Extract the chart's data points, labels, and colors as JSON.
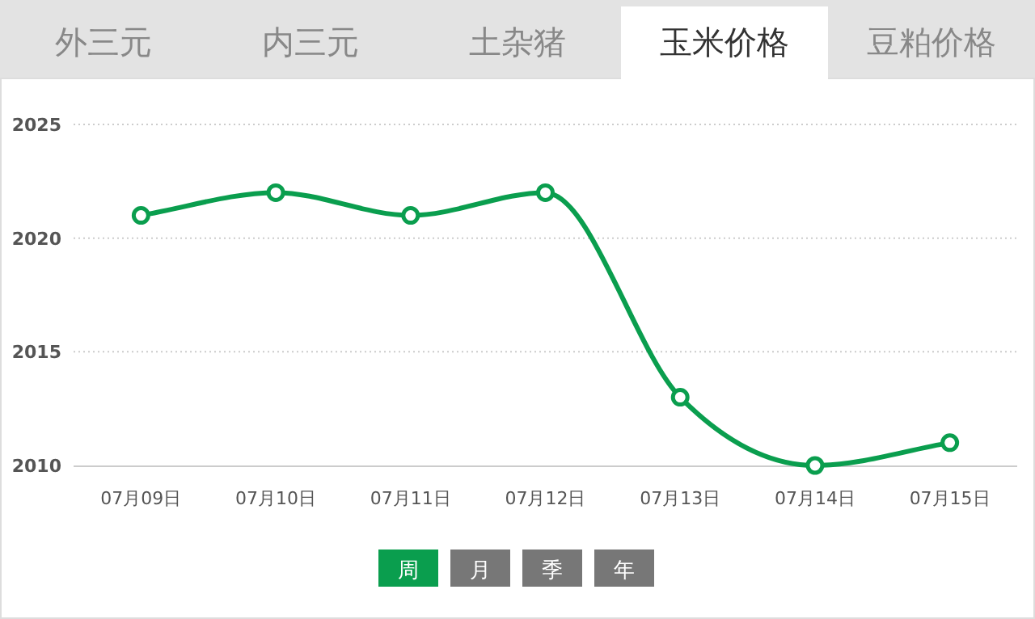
{
  "chart_data": {
    "type": "line",
    "title": "玉米价格",
    "categories": [
      "07月09日",
      "07月10日",
      "07月11日",
      "07月12日",
      "07月13日",
      "07月14日",
      "07月15日"
    ],
    "series": [
      {
        "color": "#0a9e4e",
        "values": [
          2021,
          2022,
          2021,
          2022,
          2013,
          2010,
          2011
        ]
      }
    ],
    "ylim": [
      2010,
      2025
    ],
    "yticks": [
      2010,
      2015,
      2020,
      2025
    ],
    "grid": "y",
    "marker": "circle",
    "line_style": "solid",
    "annotations": [
      "外三元",
      "内三元",
      "土杂猪",
      "豆粕价格",
      "周",
      "月",
      "季",
      "年"
    ]
  }
}
